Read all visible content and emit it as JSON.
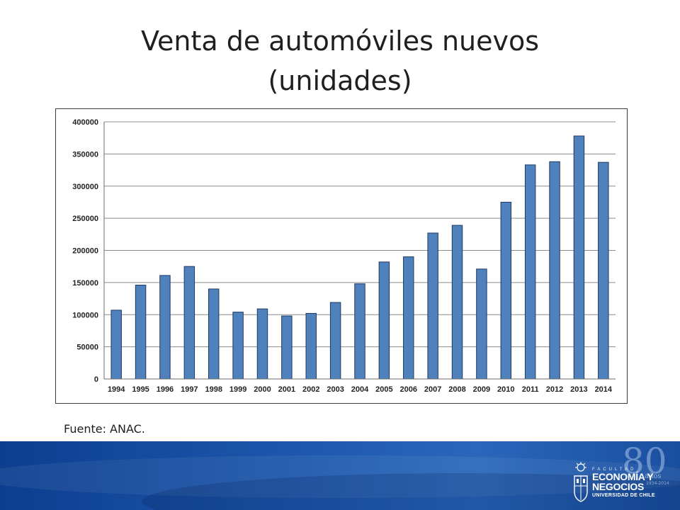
{
  "slide": {
    "title_line1": "Venta de automóviles nuevos",
    "title_line2": "(unidades)",
    "source": "Fuente: ANAC."
  },
  "branding": {
    "anniversary_number": "80",
    "anniversary_word": "años",
    "anniversary_years": "1934-2014",
    "faculty_label": "FACULTAD",
    "logo_line1": "ECONOMÍA Y",
    "logo_line2": "NEGOCIOS",
    "logo_line3": "UNIVERSIDAD DE CHILE"
  },
  "colors": {
    "bar_fill": "#4f81bd",
    "bar_stroke": "#1f3864",
    "gridline": "#8c8c8c",
    "footer_blue": "#1e58ad"
  },
  "chart_data": {
    "type": "bar",
    "title": "",
    "xlabel": "",
    "ylabel": "",
    "categories": [
      "1994",
      "1995",
      "1996",
      "1997",
      "1998",
      "1999",
      "2000",
      "2001",
      "2002",
      "2003",
      "2004",
      "2005",
      "2006",
      "2007",
      "2008",
      "2009",
      "2010",
      "2011",
      "2012",
      "2013",
      "2014"
    ],
    "values": [
      107000,
      146000,
      161000,
      175000,
      140000,
      104000,
      109000,
      98000,
      102000,
      119000,
      148000,
      182000,
      190000,
      227000,
      239000,
      171000,
      275000,
      333000,
      338000,
      378000,
      337000
    ],
    "ylim": [
      0,
      400000
    ],
    "yticks": [
      0,
      50000,
      100000,
      150000,
      200000,
      250000,
      300000,
      350000,
      400000
    ],
    "grid": true,
    "legend": "none"
  }
}
